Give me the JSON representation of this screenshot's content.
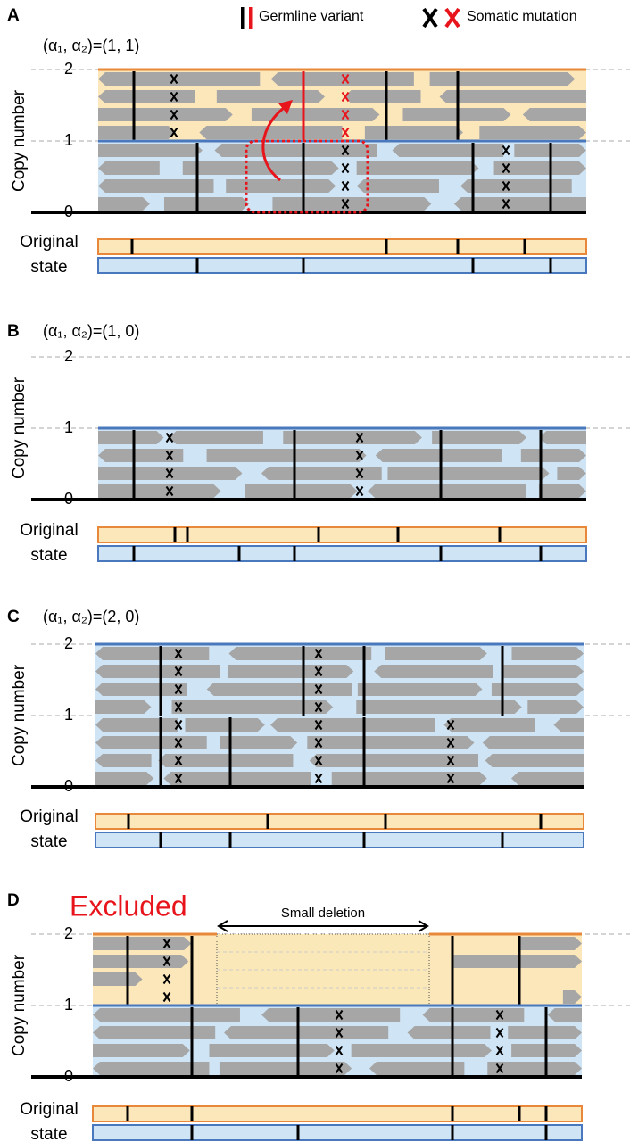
{
  "legend": {
    "germline": "Germline variant",
    "somatic": "Somatic mutation"
  },
  "panels": [
    {
      "label": "A",
      "ploidy": "(α₁, α₂)=(1, 1)",
      "axis_title": "Copy number",
      "ticks": [
        "0",
        "1",
        "2"
      ],
      "original_state": [
        "Original",
        "state"
      ]
    },
    {
      "label": "B",
      "ploidy": "(α₁, α₂)=(1, 0)",
      "axis_title": "Copy number",
      "ticks": [
        "0",
        "1",
        "2"
      ],
      "original_state": [
        "Original",
        "state"
      ]
    },
    {
      "label": "C",
      "ploidy": "(α₁, α₂)=(2, 0)",
      "axis_title": "Copy number",
      "ticks": [
        "0",
        "1",
        "2"
      ],
      "original_state": [
        "Original",
        "state"
      ]
    },
    {
      "label": "D",
      "note": "Excluded",
      "deletion": "Small deletion",
      "axis_title": "Copy number",
      "ticks": [
        "0",
        "1",
        "2"
      ],
      "original_state": [
        "Original",
        "state"
      ]
    }
  ]
}
